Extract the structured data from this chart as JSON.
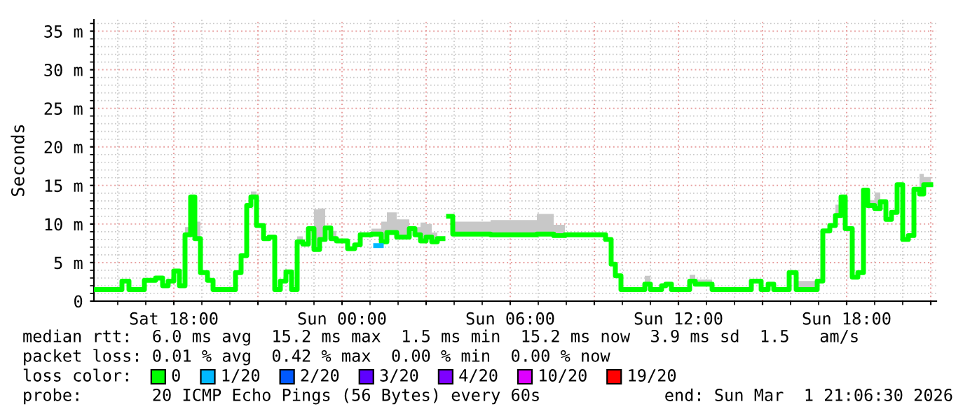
{
  "chart_data": {
    "type": "step",
    "ylabel": "Seconds",
    "legend_title": "loss color:",
    "legend": "bottom",
    "grid": true,
    "xlim": [
      "2026-02-28T15:09",
      "2026-03-01T21:12"
    ],
    "xticks": [
      {
        "value": "2026-02-28T18:00",
        "label": "Sat 18:00"
      },
      {
        "value": "2026-02-28T21:00",
        "label": null
      },
      {
        "value": "2026-03-01T00:00",
        "label": "Sun 00:00"
      },
      {
        "value": "2026-03-01T03:00",
        "label": null
      },
      {
        "value": "2026-03-01T06:00",
        "label": "Sun 06:00"
      },
      {
        "value": "2026-03-01T09:00",
        "label": null
      },
      {
        "value": "2026-03-01T12:00",
        "label": "Sun 12:00"
      },
      {
        "value": "2026-03-01T15:00",
        "label": null
      },
      {
        "value": "2026-03-01T18:00",
        "label": "Sun 18:00"
      },
      {
        "value": "2026-03-01T21:00",
        "label": null
      }
    ],
    "ylim": [
      0,
      36.5
    ],
    "yticks": [
      0,
      {
        "value": 5,
        "label": "5 m"
      },
      {
        "value": 10,
        "label": "10 m"
      },
      {
        "value": 15,
        "label": "15 m"
      },
      {
        "value": 20,
        "label": "20 m"
      },
      {
        "value": 25,
        "label": "25 m"
      },
      {
        "value": 30,
        "label": "30 m"
      },
      {
        "value": 35,
        "label": "35 m"
      }
    ],
    "series": [
      {
        "name": "0",
        "color": "#00ff00",
        "x": [
          "2026-02-28T15:09",
          "2026-02-28T16:09",
          "2026-02-28T16:24",
          "2026-02-28T16:57",
          "2026-02-28T17:21",
          "2026-02-28T17:36",
          "2026-02-28T17:48",
          "2026-02-28T18:00",
          "2026-02-28T18:12",
          "2026-02-28T18:24",
          "2026-02-28T18:36",
          "2026-02-28T18:45",
          "2026-02-28T18:57",
          "2026-02-28T19:12",
          "2026-02-28T19:24",
          "2026-02-28T20:12",
          "2026-02-28T20:24",
          "2026-02-28T20:36",
          "2026-02-28T20:45",
          "2026-02-28T20:57",
          "2026-02-28T21:12",
          "2026-02-28T21:24",
          "2026-02-28T21:36",
          "2026-02-28T21:48",
          "2026-02-28T22:00",
          "2026-02-28T22:12",
          "2026-02-28T22:24",
          "2026-02-28T22:36",
          "2026-02-28T22:48",
          "2026-02-28T23:00",
          "2026-02-28T23:12",
          "2026-02-28T23:24",
          "2026-02-28T23:36",
          "2026-02-28T23:48",
          "2026-03-01T00:12",
          "2026-03-01T00:27",
          "2026-03-01T00:39",
          "2026-03-01T01:03",
          "2026-03-01T01:24",
          "2026-03-01T01:36",
          "2026-03-01T01:57",
          "2026-03-01T02:24",
          "2026-03-01T02:36",
          "2026-03-01T02:48",
          "2026-03-01T03:00",
          "2026-03-01T03:12",
          "2026-03-01T03:24",
          "2026-03-01T03:36",
          "2026-03-01T03:48",
          "2026-03-01T03:57",
          "2026-03-01T05:18",
          "2026-03-01T06:57",
          "2026-03-01T07:33",
          "2026-03-01T07:57",
          "2026-03-01T09:24",
          "2026-03-01T09:36",
          "2026-03-01T09:45",
          "2026-03-01T09:57",
          "2026-03-01T10:48",
          "2026-03-01T11:00",
          "2026-03-01T11:24",
          "2026-03-01T11:33",
          "2026-03-01T11:45",
          "2026-03-01T12:24",
          "2026-03-01T12:36",
          "2026-03-01T13:12",
          "2026-03-01T14:36",
          "2026-03-01T14:57",
          "2026-03-01T15:12",
          "2026-03-01T15:24",
          "2026-03-01T15:57",
          "2026-03-01T16:12",
          "2026-03-01T16:57",
          "2026-03-01T17:09",
          "2026-03-01T17:24",
          "2026-03-01T17:36",
          "2026-03-01T17:48",
          "2026-03-01T17:57",
          "2026-03-01T18:12",
          "2026-03-01T18:24",
          "2026-03-01T18:36",
          "2026-03-01T18:45",
          "2026-03-01T19:00",
          "2026-03-01T19:12",
          "2026-03-01T19:24",
          "2026-03-01T19:36",
          "2026-03-01T19:48",
          "2026-03-01T20:00",
          "2026-03-01T20:12",
          "2026-03-01T20:24",
          "2026-03-01T20:36",
          "2026-03-01T20:45",
          "2026-03-01T21:00"
        ],
        "values": [
          1.5,
          2.6,
          1.5,
          2.7,
          3.0,
          2.0,
          2.6,
          3.9,
          2.0,
          8.6,
          13.5,
          8.1,
          3.7,
          2.7,
          1.5,
          3.7,
          5.9,
          12.4,
          13.5,
          9.8,
          8.1,
          8.3,
          1.5,
          2.6,
          3.8,
          1.5,
          7.7,
          7.4,
          9.4,
          6.7,
          8.0,
          9.5,
          8.1,
          7.8,
          6.8,
          7.3,
          8.6,
          8.7,
          7.7,
          8.9,
          8.3,
          9.4,
          8.6,
          7.8,
          8.3,
          7.7,
          8.1,
          null,
          11.0,
          8.7,
          8.6,
          8.7,
          8.5,
          8.6,
          8.0,
          4.8,
          3.3,
          1.5,
          2.2,
          1.5,
          2.0,
          2.2,
          1.5,
          2.6,
          2.2,
          1.5,
          2.6,
          1.5,
          2.2,
          1.5,
          3.7,
          1.5,
          2.6,
          9.1,
          9.8,
          11.1,
          13.5,
          9.4,
          3.1,
          3.7,
          14.4,
          12.4,
          12.0,
          12.9,
          10.6,
          11.5,
          15.1,
          8.0,
          8.5,
          14.5,
          13.9,
          15.1,
          15.1
        ],
        "lower": [
          1.5,
          2.6,
          1.5,
          2.7,
          3.0,
          2.0,
          2.6,
          3.9,
          2.0,
          8.6,
          13.5,
          8.1,
          3.7,
          2.7,
          1.5,
          3.7,
          5.9,
          12.4,
          13.5,
          9.8,
          8.1,
          8.3,
          1.5,
          2.6,
          3.8,
          1.5,
          7.7,
          7.4,
          9.4,
          6.7,
          8.0,
          9.5,
          8.1,
          7.8,
          6.8,
          7.3,
          8.6,
          8.7,
          7.7,
          8.9,
          8.3,
          9.4,
          8.6,
          7.8,
          8.3,
          7.7,
          8.1,
          null,
          11.0,
          8.7,
          8.6,
          8.7,
          8.5,
          8.6,
          8.0,
          4.8,
          3.3,
          1.5,
          2.2,
          1.5,
          2.0,
          2.2,
          1.5,
          2.6,
          2.2,
          1.5,
          2.6,
          1.5,
          2.2,
          1.5,
          3.7,
          1.5,
          2.6,
          9.1,
          9.8,
          11.1,
          13.5,
          9.4,
          3.1,
          3.7,
          14.4,
          12.4,
          12.0,
          12.9,
          10.6,
          11.5,
          15.1,
          8.0,
          8.5,
          14.5,
          13.9,
          15.1,
          15.1
        ],
        "upper": [
          1.5,
          2.6,
          1.5,
          2.7,
          3.0,
          2.0,
          2.6,
          3.9,
          2.0,
          9.6,
          13.5,
          10.3,
          3.7,
          2.7,
          1.5,
          3.7,
          5.9,
          12.4,
          14.2,
          9.8,
          8.1,
          8.3,
          1.5,
          2.6,
          3.8,
          1.5,
          8.4,
          7.4,
          9.4,
          11.9,
          12.0,
          9.5,
          9.1,
          7.8,
          6.8,
          7.3,
          8.6,
          9.4,
          10.3,
          11.5,
          10.6,
          9.4,
          9.6,
          10.2,
          10.0,
          8.9,
          9.4,
          null,
          11.0,
          10.3,
          10.5,
          11.3,
          9.9,
          8.6,
          8.0,
          4.8,
          3.3,
          1.5,
          3.3,
          1.5,
          2.0,
          2.2,
          1.5,
          3.4,
          2.8,
          1.5,
          2.6,
          1.5,
          2.2,
          1.5,
          3.7,
          2.6,
          2.6,
          9.1,
          9.8,
          12.5,
          13.5,
          9.4,
          3.1,
          3.7,
          14.4,
          13.1,
          14.1,
          12.9,
          10.6,
          11.5,
          15.1,
          8.0,
          8.5,
          14.5,
          16.5,
          16.1,
          16.1
        ]
      },
      {
        "name": "1/20",
        "color": "#00b8ff",
        "x": [
          "2026-03-01T01:12",
          "2026-03-01T01:24"
        ],
        "values": [
          7.2,
          7.2
        ]
      },
      {
        "name": "2/20",
        "color": "#0059ff"
      },
      {
        "name": "3/20",
        "color": "#5e00ff"
      },
      {
        "name": "4/20",
        "color": "#7e00ff"
      },
      {
        "name": "10/20",
        "color": "#dd00ff"
      },
      {
        "name": "19/20",
        "color": "#ff0000"
      }
    ],
    "annotations": [
      "median rtt:  6.0 ms avg  15.2 ms max  1.5 ms min  15.2 ms now  3.9 ms sd  1.5   am/s",
      "packet loss: 0.01 % avg  0.42 % max  0.00 % min  0.00 % now",
      "probe:       20 ICMP Echo Pings (56 Bytes) every 60s",
      "end: Sun Mar  1 21:06:30 2026"
    ]
  }
}
